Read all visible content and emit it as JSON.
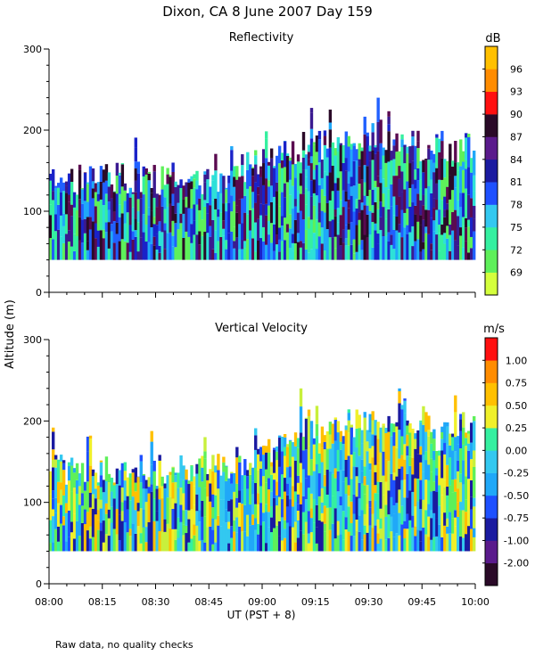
{
  "page": {
    "title": "Dixon, CA  8 June 2007  Day 159",
    "footnote": "Raw data, no quality checks",
    "shared_ylabel": "Altitude (m)",
    "shared_xlabel": "UT  (PST + 8)"
  },
  "chart_data": [
    {
      "type": "heatmap",
      "title": "Reflectivity",
      "units": "dB",
      "xlabel": "UT  (PST + 8)",
      "ylabel": "Altitude (m)",
      "x_range": [
        "08:00",
        "10:00"
      ],
      "ylim": [
        0,
        300
      ],
      "x_ticks": [
        "08:00",
        "08:15",
        "08:30",
        "08:45",
        "09:00",
        "09:15",
        "09:30",
        "09:45",
        "10:00"
      ],
      "y_ticks": [
        0,
        100,
        200,
        300
      ],
      "data_bottom_m": 40,
      "echo_top_profile": {
        "time": [
          "08:00",
          "08:15",
          "08:30",
          "08:45",
          "09:00",
          "09:10",
          "09:20",
          "09:30",
          "09:40",
          "09:50",
          "10:00"
        ],
        "top_m": [
          140,
          140,
          140,
          140,
          160,
          180,
          180,
          200,
          180,
          180,
          180
        ]
      },
      "colorbar": {
        "labels": [
          "69",
          "72",
          "75",
          "78",
          "81",
          "84",
          "87",
          "90",
          "93",
          "96"
        ],
        "colors": [
          "#d4ff3c",
          "#5ef05a",
          "#35f0a0",
          "#33c8f0",
          "#1e50ff",
          "#1a1aa0",
          "#5a1a8c",
          "#2a0a28",
          "#ff1010",
          "#ff8c00",
          "#ffc000"
        ]
      },
      "colormap": [
        "#2ee0d8",
        "#20a8f8",
        "#2060ff",
        "#1a22c8",
        "#3a1a90",
        "#5a0a50",
        "#2a0a28",
        "#35f0a0",
        "#5ef05a"
      ]
    },
    {
      "type": "heatmap",
      "title": "Vertical Velocity",
      "units": "m/s",
      "xlabel": "UT  (PST + 8)",
      "ylabel": "Altitude (m)",
      "x_range": [
        "08:00",
        "10:00"
      ],
      "ylim": [
        0,
        300
      ],
      "x_ticks": [
        "08:00",
        "08:15",
        "08:30",
        "08:45",
        "09:00",
        "09:15",
        "09:30",
        "09:45",
        "10:00"
      ],
      "y_ticks": [
        0,
        100,
        200,
        300
      ],
      "data_bottom_m": 40,
      "echo_top_profile": {
        "time": [
          "08:00",
          "08:15",
          "08:30",
          "08:45",
          "09:00",
          "09:10",
          "09:20",
          "09:30",
          "09:40",
          "09:50",
          "10:00"
        ],
        "top_m": [
          140,
          140,
          140,
          140,
          160,
          180,
          200,
          200,
          200,
          180,
          200
        ]
      },
      "colorbar": {
        "labels": [
          "-2.00",
          "-1.00",
          "-0.75",
          "-0.50",
          "-0.25",
          "0.00",
          "0.25",
          "0.50",
          "0.75",
          "1.00"
        ],
        "colors": [
          "#2a0a28",
          "#5a1a8c",
          "#1a1aa0",
          "#1e50ff",
          "#20a8f8",
          "#33c8f0",
          "#35f0a0",
          "#f0f02a",
          "#ffc000",
          "#ff8c00",
          "#ff1010"
        ]
      },
      "colormap": [
        "#33c8f0",
        "#20a8f8",
        "#1e50ff",
        "#35f0a0",
        "#5ef05a",
        "#c8f03c",
        "#f0f02a",
        "#1a1aa0",
        "#ffc000"
      ]
    }
  ]
}
